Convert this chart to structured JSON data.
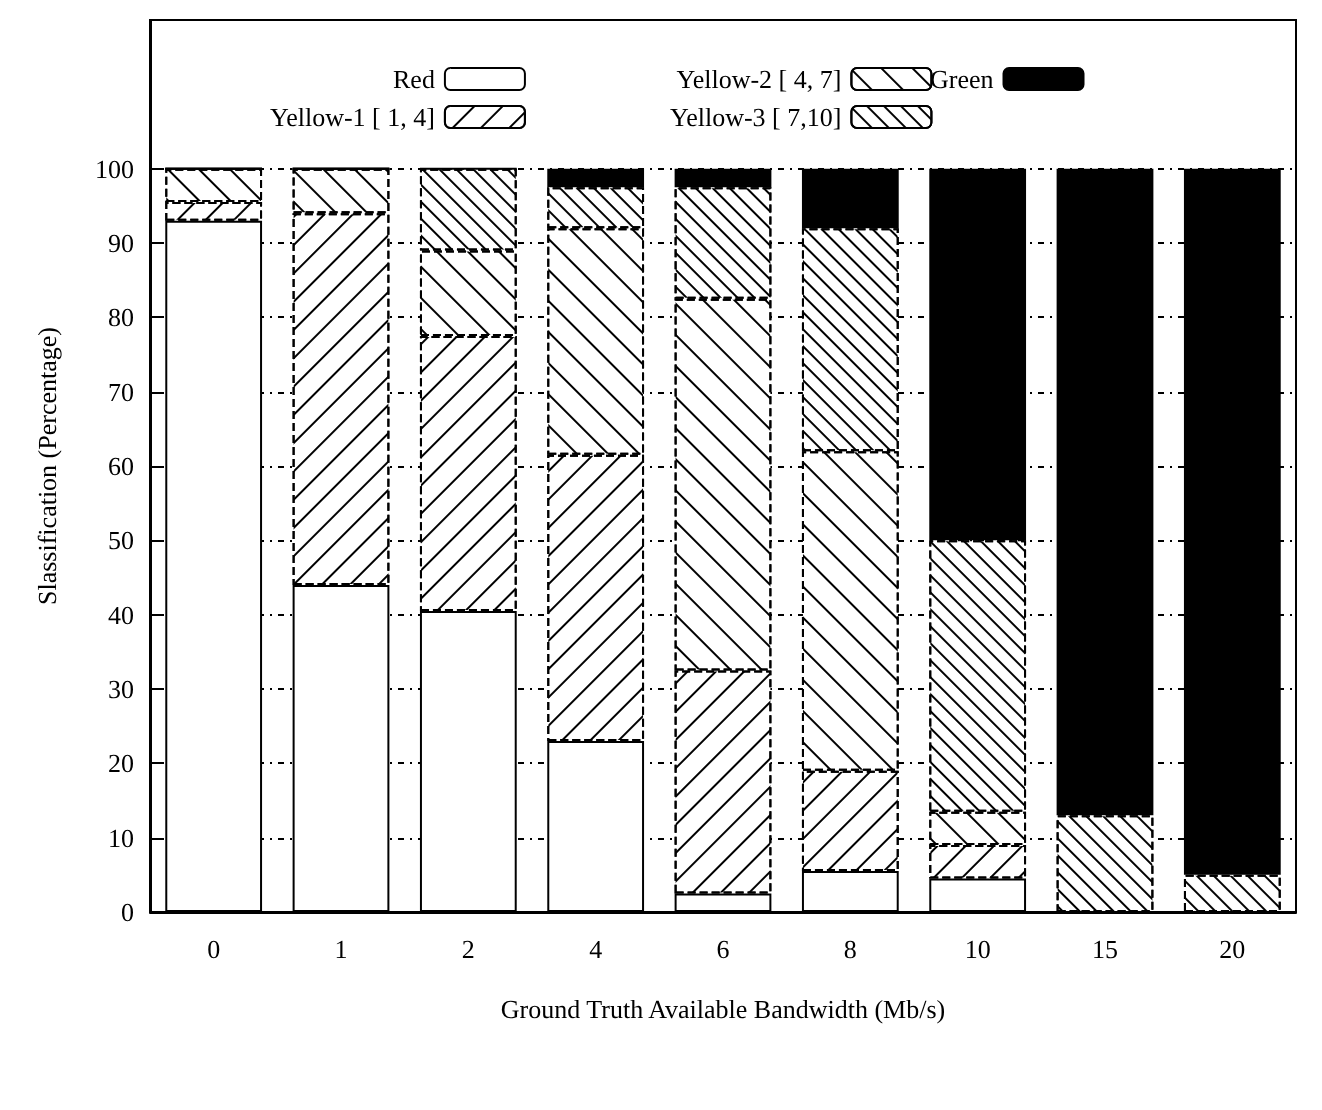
{
  "chart_data": {
    "type": "bar",
    "stacked": true,
    "xlabel": "Ground Truth Available Bandwidth (Mb/s)",
    "ylabel": "Slassification (Percentage)",
    "categories": [
      "0",
      "1",
      "2",
      "4",
      "6",
      "8",
      "10",
      "15",
      "20"
    ],
    "series": [
      {
        "name": "Red",
        "color": "#ffffff",
        "values": [
          93,
          44,
          40.5,
          23,
          2.5,
          5.5,
          4.5,
          0,
          0
        ]
      },
      {
        "name": "Yellow-1 [ 1, 4]",
        "color": "#ffffff",
        "values": [
          2.5,
          50,
          37,
          38.5,
          30,
          13.5,
          4.5,
          0,
          0
        ]
      },
      {
        "name": "Yellow-2 [ 4, 7]",
        "color": "#ffffff",
        "values": [
          4.5,
          6,
          11.5,
          30.5,
          50,
          43,
          4.5,
          0,
          0
        ]
      },
      {
        "name": "Yellow-3 [ 7,10]",
        "color": "#ffffff",
        "values": [
          0,
          0,
          11,
          5.5,
          15,
          30,
          36.5,
          13,
          5
        ]
      },
      {
        "name": "Green",
        "color": "#000000",
        "values": [
          0,
          0,
          0,
          2.5,
          2.5,
          8,
          50,
          87,
          95
        ]
      }
    ],
    "ylim": [
      0,
      120
    ],
    "yticks": [
      0,
      10,
      20,
      30,
      40,
      50,
      60,
      70,
      80,
      90,
      100
    ],
    "grid": "y",
    "legend": "top"
  }
}
